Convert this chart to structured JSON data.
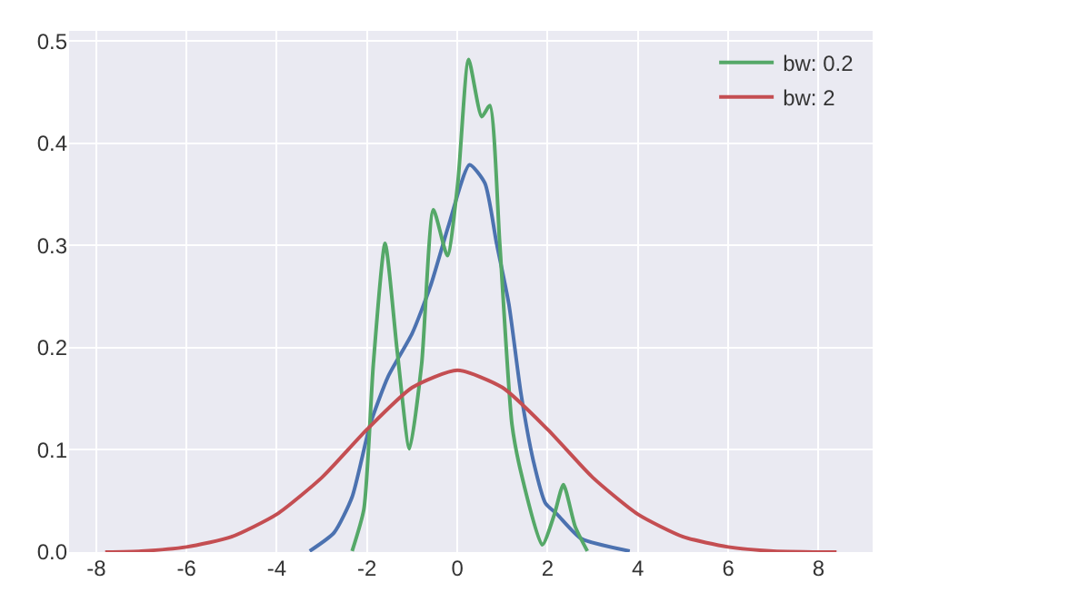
{
  "chart_data": {
    "type": "line",
    "xlim": [
      -8.6,
      9.2
    ],
    "ylim": [
      0,
      0.51
    ],
    "xticks": [
      -8,
      -6,
      -4,
      -2,
      0,
      2,
      4,
      6,
      8
    ],
    "yticks": [
      {
        "value": 0,
        "label": "0.0"
      },
      {
        "value": 0.1,
        "label": "0.1"
      },
      {
        "value": 0.2,
        "label": "0.2"
      },
      {
        "value": 0.3,
        "label": "0.3"
      },
      {
        "value": 0.4,
        "label": "0.4"
      },
      {
        "value": 0.5,
        "label": "0.5"
      }
    ],
    "grid": true,
    "legend": "top right",
    "marker": "none",
    "line_style": "solid",
    "series": [
      {
        "color": "#4c72b0",
        "x": [
          -3.27,
          -2.73,
          -2.33,
          -1.93,
          -1.53,
          -1.0,
          -0.59,
          -0.19,
          0.27,
          0.61,
          0.87,
          1.14,
          1.41,
          1.68,
          1.95,
          2.21,
          2.75,
          3.82
        ],
        "values": [
          0.001,
          0.019,
          0.054,
          0.125,
          0.172,
          0.214,
          0.261,
          0.32,
          0.379,
          0.361,
          0.302,
          0.243,
          0.155,
          0.09,
          0.048,
          0.037,
          0.013,
          0.001
        ]
      },
      {
        "name": "bw: 0.2",
        "color": "#55a868",
        "x": [
          -2.33,
          -2.07,
          -1.86,
          -1.6,
          -1.33,
          -1.06,
          -0.79,
          -0.53,
          -0.22,
          0.01,
          0.25,
          0.54,
          0.72,
          0.94,
          1.21,
          1.41,
          1.88,
          2.15,
          2.35,
          2.61,
          2.88
        ],
        "values": [
          0.001,
          0.042,
          0.184,
          0.302,
          0.196,
          0.101,
          0.184,
          0.335,
          0.29,
          0.361,
          0.482,
          0.426,
          0.437,
          0.302,
          0.125,
          0.078,
          0.007,
          0.037,
          0.066,
          0.025,
          0.001
        ]
      },
      {
        "name": "bw: 2",
        "color": "#c44e52",
        "x": [
          -7.8,
          -7,
          -6,
          -5,
          -4,
          -3,
          -2,
          -1,
          0,
          1,
          2,
          3,
          4,
          5,
          6,
          7,
          8.4
        ],
        "values": [
          0,
          0.001,
          0.005,
          0.015,
          0.037,
          0.073,
          0.12,
          0.161,
          0.178,
          0.161,
          0.12,
          0.073,
          0.037,
          0.015,
          0.005,
          0.001,
          0
        ]
      }
    ]
  }
}
